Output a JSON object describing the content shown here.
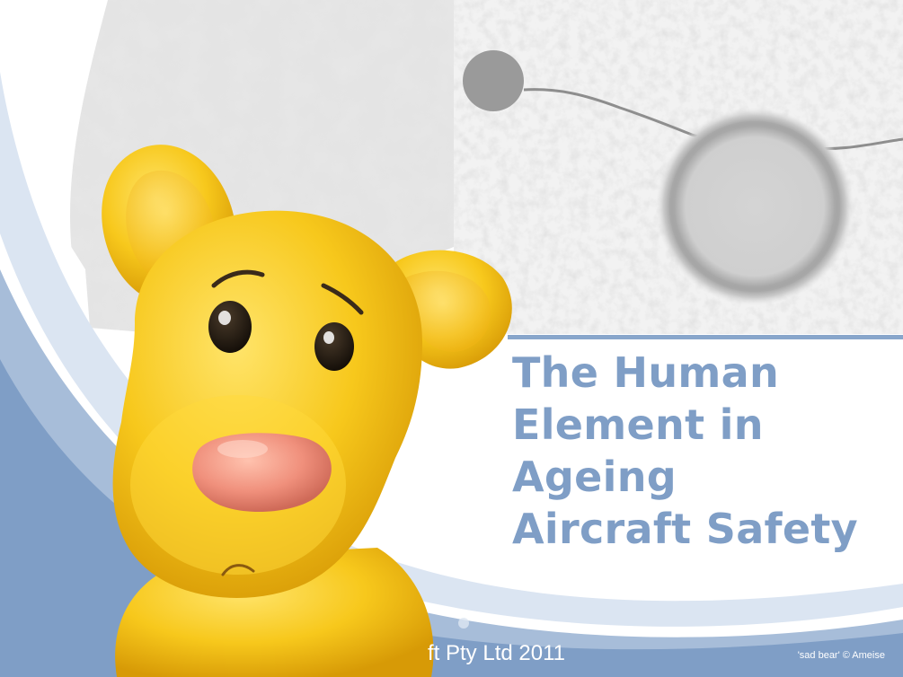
{
  "slide": {
    "title_lines": [
      "The Human",
      "Element in",
      "Ageing",
      "Aircraft Safety"
    ],
    "footer_copyright": "ft Pty Ltd 2011",
    "image_credit": "'sad bear' © Ameise"
  },
  "colors": {
    "title": "#7f9ec6",
    "rule": "#88a6cb",
    "wave_dark": "#7f9ec6",
    "wave_light": "#dbe5f2",
    "bear_yellow": "#f7c81c",
    "bear_nose": "#f0907c"
  },
  "icons": {
    "mascot": "sad-bear-illustration",
    "background": "corroded-metal-texture"
  }
}
